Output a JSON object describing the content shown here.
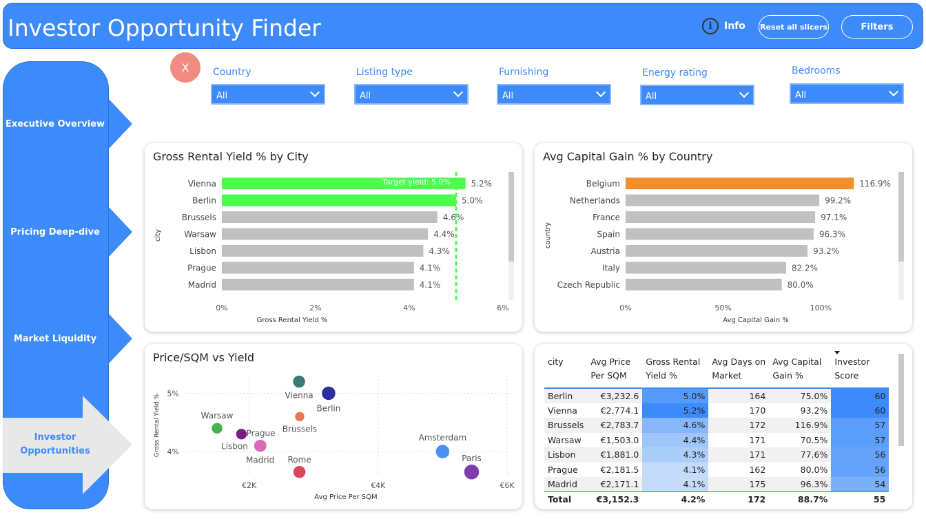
{
  "header": {
    "title": "Investor Opportunity Finder",
    "info_label": "Info",
    "reset_label": "Reset all slicers",
    "filters_label": "Filters"
  },
  "sidebar": {
    "items": [
      {
        "label": "Executive Overview"
      },
      {
        "label": "Pricing Deep-dive"
      },
      {
        "label": "Market Liquidity"
      },
      {
        "label": "Investor Opportunities"
      }
    ]
  },
  "close_label": "X",
  "slicers": [
    {
      "label": "Country",
      "value": "All"
    },
    {
      "label": "Listing type",
      "value": "All"
    },
    {
      "label": "Furnishing",
      "value": "All"
    },
    {
      "label": "Energy rating",
      "value": "All"
    },
    {
      "label": "Bedrooms",
      "value": "All"
    }
  ],
  "colors": {
    "accent": "#3d8bfa",
    "bar_highlight_green": "#4cff4c",
    "bar_highlight_orange": "#f28e2b",
    "bar_default": "#c0c0c0"
  },
  "chart_data": [
    {
      "type": "bar",
      "orientation": "horizontal",
      "title": "Gross Rental Yield % by City",
      "xlabel": "Gross Rental Yield %",
      "ylabel": "city",
      "categories": [
        "Vienna",
        "Berlin",
        "Brussels",
        "Warsaw",
        "Lisbon",
        "Prague",
        "Madrid"
      ],
      "values": [
        5.2,
        5.0,
        4.6,
        4.4,
        4.3,
        4.1,
        4.1
      ],
      "value_labels": [
        "5.2%",
        "5.0%",
        "4.6%",
        "4.4%",
        "4.3%",
        "4.1%",
        "4.1%"
      ],
      "xlim": [
        0,
        6
      ],
      "x_ticks": [
        "0%",
        "2%",
        "4%",
        "6%"
      ],
      "reference_line": {
        "value": 5.0,
        "label": "Target yield: 5.0%",
        "color": "#4cff4c"
      },
      "highlighted": [
        "Vienna",
        "Berlin"
      ]
    },
    {
      "type": "bar",
      "orientation": "horizontal",
      "title": "Avg Capital Gain % by Country",
      "xlabel": "Avg Capital Gain %",
      "ylabel": "country",
      "categories": [
        "Belgium",
        "Netherlands",
        "France",
        "Spain",
        "Austria",
        "Italy",
        "Czech Republic"
      ],
      "values": [
        116.9,
        99.2,
        97.1,
        96.3,
        93.2,
        82.2,
        80.0
      ],
      "value_labels": [
        "116.9%",
        "99.2%",
        "97.1%",
        "96.3%",
        "93.2%",
        "82.2%",
        "80.0%"
      ],
      "xlim": [
        0,
        120
      ],
      "x_ticks": [
        "0%",
        "50%",
        "100%"
      ],
      "highlighted": [
        "Belgium"
      ]
    },
    {
      "type": "scatter",
      "title": "Price/SQM vs Yield",
      "xlabel": "Avg Price Per SQM",
      "ylabel": "Gross Rental Yield %",
      "xlim": [
        1000,
        6000
      ],
      "ylim": [
        3.6,
        5.3
      ],
      "x_ticks": [
        "€2K",
        "€4K",
        "€6K"
      ],
      "y_ticks": [
        "4%",
        "5%"
      ],
      "points": [
        {
          "label": "Vienna",
          "x": 2774.1,
          "y": 5.2,
          "color": "#3a7a78"
        },
        {
          "label": "Berlin",
          "x": 3232.6,
          "y": 5.0,
          "color": "#2e2ea3"
        },
        {
          "label": "Brussels",
          "x": 2783.7,
          "y": 4.6,
          "color": "#e8784f"
        },
        {
          "label": "Warsaw",
          "x": 1503.0,
          "y": 4.4,
          "color": "#4caf50"
        },
        {
          "label": "Prague",
          "x": 2181.5,
          "y": 4.1,
          "color": "#e0a020"
        },
        {
          "label": "Lisbon",
          "x": 1881.0,
          "y": 4.3,
          "color": "#7b1c8a"
        },
        {
          "label": "Madrid",
          "x": 2171.1,
          "y": 4.1,
          "color": "#d86ab8"
        },
        {
          "label": "Rome",
          "x": 2780.0,
          "y": 3.65,
          "color": "#d9485a"
        },
        {
          "label": "Amsterdam",
          "x": 5000.0,
          "y": 4.0,
          "color": "#4a90f0"
        },
        {
          "label": "Paris",
          "x": 5450.0,
          "y": 3.65,
          "color": "#7d3fb0"
        }
      ]
    },
    {
      "type": "table",
      "columns": [
        "city",
        "Avg Price Per SQM",
        "Gross Rental Yield %",
        "Avg Days on Market",
        "Avg Capital Gain %",
        "Investor Score"
      ],
      "rows": [
        [
          "Berlin",
          "€3,232.6",
          "5.0%",
          "164",
          "75.0%",
          "60"
        ],
        [
          "Vienna",
          "€2,774.1",
          "5.2%",
          "170",
          "93.2%",
          "60"
        ],
        [
          "Brussels",
          "€2,783.7",
          "4.6%",
          "172",
          "116.9%",
          "57"
        ],
        [
          "Warsaw",
          "€1,503.0",
          "4.4%",
          "171",
          "70.5%",
          "57"
        ],
        [
          "Lisbon",
          "€1,881.0",
          "4.3%",
          "171",
          "77.6%",
          "56"
        ],
        [
          "Prague",
          "€2,181.5",
          "4.1%",
          "162",
          "80.0%",
          "56"
        ],
        [
          "Madrid",
          "€2,171.1",
          "4.1%",
          "175",
          "96.3%",
          "54"
        ]
      ],
      "total": [
        "Total",
        "€3,152.3",
        "4.2%",
        "172",
        "88.7%",
        "55"
      ],
      "sorted_by": "Investor Score"
    }
  ]
}
